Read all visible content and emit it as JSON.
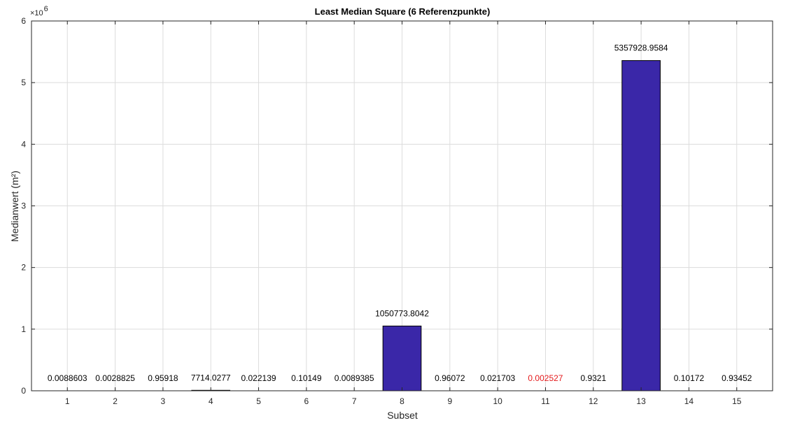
{
  "chart_data": {
    "type": "bar",
    "title": "Least Median Square (6 Referenzpunkte)",
    "xlabel": "Subset",
    "ylabel": "Medianwert (m²)",
    "y_multiplier": "×10^6",
    "ylim": [
      0,
      6000000
    ],
    "y_ticks": [
      0,
      1,
      2,
      3,
      4,
      5,
      6
    ],
    "y_tick_scale": 1000000,
    "categories": [
      "1",
      "2",
      "3",
      "4",
      "5",
      "6",
      "7",
      "8",
      "9",
      "10",
      "11",
      "12",
      "13",
      "14",
      "15"
    ],
    "values": [
      0.0088603,
      0.0028825,
      0.95918,
      7714.0277,
      0.022139,
      0.10149,
      0.0089385,
      1050773.8042,
      0.96072,
      0.021703,
      0.002527,
      0.9321,
      5357928.9584,
      0.10172,
      0.93452
    ],
    "data_labels": [
      "0.0088603",
      "0.0028825",
      "0.95918",
      "7714.0277",
      "0.022139",
      "0.10149",
      "0.0089385",
      "1050773.8042",
      "0.96072",
      "0.021703",
      "0.002527",
      "0.9321",
      "5357928.9584",
      "0.10172",
      "0.93452"
    ],
    "highlight_index": 10,
    "grid": true,
    "colors": {
      "bar": "#3a27a8",
      "bar_edge": "#000000",
      "grid": "#dcdcdc",
      "highlight_label": "#e41a1c",
      "label": "#000000"
    }
  }
}
